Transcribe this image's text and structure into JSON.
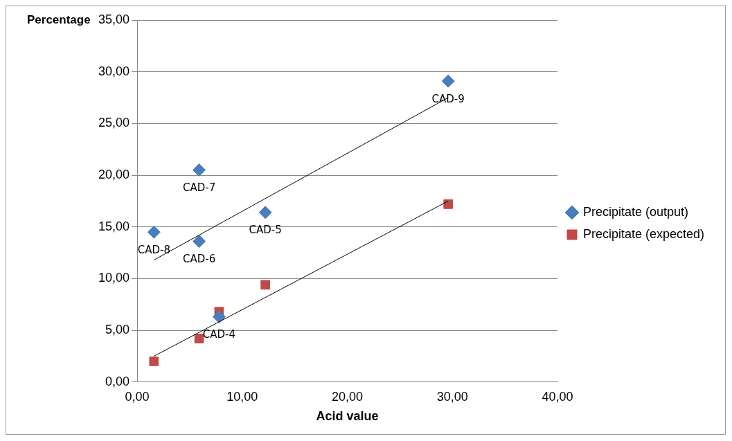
{
  "chart_data": {
    "type": "scatter",
    "xlabel": "Acid value",
    "ylabel": "Percentage",
    "xlim": [
      0,
      40
    ],
    "xticks": [
      {
        "value": 0,
        "label": "0,00"
      },
      {
        "value": 10,
        "label": "10,00"
      },
      {
        "value": 20,
        "label": "20,00"
      },
      {
        "value": 30,
        "label": "30,00"
      },
      {
        "value": 40,
        "label": "40,00"
      }
    ],
    "ylim": [
      0,
      35
    ],
    "yticks": [
      {
        "value": 0,
        "label": "0,00"
      },
      {
        "value": 5,
        "label": "5,00"
      },
      {
        "value": 10,
        "label": "10,00"
      },
      {
        "value": 15,
        "label": "15,00"
      },
      {
        "value": 20,
        "label": "20,00"
      },
      {
        "value": 25,
        "label": "25,00"
      },
      {
        "value": 30,
        "label": "30,00"
      },
      {
        "value": 35,
        "label": "35,00"
      }
    ],
    "grid": "y",
    "legend": "right",
    "series": [
      {
        "name": "Precipitate (output)",
        "color": "#4a7ebb",
        "marker": "diamond",
        "x": [
          1.6,
          5.9,
          5.9,
          7.8,
          12.2,
          29.6
        ],
        "values": [
          14.5,
          20.5,
          13.6,
          6.3,
          16.4,
          29.1
        ],
        "value_labels": [
          "CAD-8",
          "CAD-7",
          "CAD-6",
          "CAD-4",
          "CAD-5",
          "CAD-9"
        ]
      },
      {
        "name": "Precipitate (expected)",
        "color": "#be4b48",
        "marker": "square",
        "x": [
          1.6,
          5.9,
          7.8,
          12.2,
          29.6
        ],
        "values": [
          2.0,
          4.2,
          6.8,
          9.4,
          17.2
        ]
      },
      {
        "type": "line",
        "color": "#000000",
        "marker": "none",
        "x": [
          1.6,
          29.6
        ],
        "values": [
          11.8,
          27.5
        ]
      },
      {
        "type": "line",
        "color": "#000000",
        "marker": "none",
        "x": [
          1.6,
          29.6
        ],
        "values": [
          2.5,
          17.5
        ]
      }
    ]
  }
}
